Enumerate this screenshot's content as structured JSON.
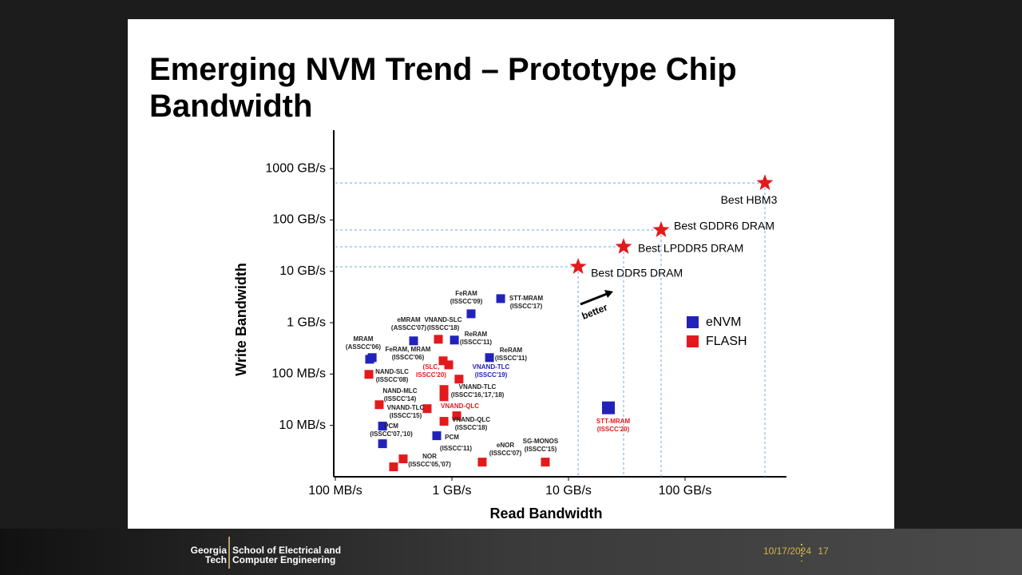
{
  "title": "Emerging NVM Trend – Prototype Chip Bandwidth",
  "chart_data": {
    "type": "scatter",
    "log_x": true,
    "log_y": true,
    "xlabel": "Read Bandwidth",
    "ylabel": "Write Bandwidth",
    "xlim": [
      0.1,
      741
    ],
    "ylim": [
      0.001,
      5600
    ],
    "xticks": [
      {
        "value": 0.1,
        "label": "100 MB/s"
      },
      {
        "value": 1,
        "label": "1 GB/s"
      },
      {
        "value": 10,
        "label": "10 GB/s"
      },
      {
        "value": 100,
        "label": "100 GB/s"
      }
    ],
    "yticks": [
      {
        "value": 0.01,
        "label": "10 MB/s"
      },
      {
        "value": 0.1,
        "label": "100 MB/s"
      },
      {
        "value": 1,
        "label": "1 GB/s"
      },
      {
        "value": 10,
        "label": "10 GB/s"
      },
      {
        "value": 100,
        "label": "100 GB/s"
      },
      {
        "value": 1000,
        "label": "1000 GB/s"
      }
    ],
    "series": [
      {
        "name": "eNVM",
        "color": "#2222bb",
        "marker": "square",
        "x": [
          0.197,
          0.207,
          0.254,
          0.254,
          0.469,
          0.741,
          1.05,
          1.46,
          2.1,
          2.62,
          22
        ],
        "values": [
          0.194,
          0.209,
          0.0097,
          0.0044,
          0.443,
          0.0063,
          0.459,
          1.49,
          0.209,
          2.94,
          0.022
        ]
      },
      {
        "name": "FLASH",
        "color": "#e31a1c",
        "marker": "square",
        "x": [
          0.194,
          0.238,
          0.316,
          0.382,
          0.613,
          0.765,
          0.841,
          0.939,
          0.855,
          0.855,
          0.855,
          1.1,
          1.15,
          1.82,
          6.33
        ],
        "values": [
          0.0986,
          0.0253,
          0.00156,
          0.00223,
          0.0212,
          0.475,
          0.181,
          0.151,
          0.05,
          0.0362,
          0.012,
          0.0154,
          0.0796,
          0.00193,
          0.00193
        ]
      }
    ],
    "best": {
      "color": "#e31a1c",
      "marker": "star",
      "x": [
        12.1,
        29.7,
        62.3,
        484
      ],
      "values": [
        12.3,
        30.1,
        63.7,
        525
      ],
      "labels": [
        "Best DDR5 DRAM",
        "Best LPDDR5 DRAM",
        "Best GDDR6 DRAM",
        "Best HBM3"
      ]
    },
    "arrow_label": "better",
    "annotations": [
      {
        "lines": [
          "MRAM",
          "(ASSCC'06)"
        ]
      },
      {
        "lines": [
          "eMRAM",
          "(ASSCC'07)"
        ]
      },
      {
        "lines": [
          "VNAND-SLC",
          "(ISSCC'18)"
        ]
      },
      {
        "lines": [
          "FeRAM",
          "(ISSCC'09)"
        ]
      },
      {
        "lines": [
          "STT-MRAM",
          "(ISSCC'17)"
        ]
      },
      {
        "lines": [
          "ReRAM",
          "(ISSCC'11)"
        ]
      },
      {
        "lines": [
          "FeRAM, MRAM",
          "(ISSCC'06)"
        ]
      },
      {
        "lines": [
          "ReRAM",
          "(ISSCC'11)"
        ]
      },
      {
        "lines": [
          "(SLC,",
          "ISSCC'20)"
        ],
        "color": "#e31a1c"
      },
      {
        "lines": [
          "VNAND-TLC",
          "(ISSCC'19)"
        ],
        "color": "#2222bb"
      },
      {
        "lines": [
          "NAND-SLC",
          "(ISSCC'08)"
        ]
      },
      {
        "lines": [
          "VNAND-TLC",
          "(ISSCC'16,'17,'18)"
        ]
      },
      {
        "lines": [
          "NAND-MLC",
          "(ISSCC'14)"
        ]
      },
      {
        "lines": [
          "VNAND-TLC",
          "(ISSCC'15)"
        ]
      },
      {
        "lines": [
          "VNAND-QLC"
        ],
        "color": "#e31a1c"
      },
      {
        "lines": [
          "VNAND-QLC",
          "(ISSCC'18)"
        ]
      },
      {
        "lines": [
          "PCM",
          "(ISSCC'07,'10)"
        ]
      },
      {
        "lines": [
          "PCM"
        ]
      },
      {
        "lines": [
          "(ISSCC'11)"
        ]
      },
      {
        "lines": [
          "eNOR",
          "(ISSCC'07)"
        ]
      },
      {
        "lines": [
          "SG-MONOS",
          "(ISSCC'15)"
        ]
      },
      {
        "lines": [
          "NOR",
          "(ISSCC'05,'07)"
        ]
      },
      {
        "lines": [
          "STT-MRAM",
          "(ISSCC'20)"
        ],
        "color": "#e31a1c"
      }
    ]
  },
  "footer": {
    "logo": [
      "Georgia",
      "Tech"
    ],
    "school": [
      "School of Electrical and",
      "Computer Engineering"
    ],
    "date": "10/17/2024",
    "page": "17"
  }
}
